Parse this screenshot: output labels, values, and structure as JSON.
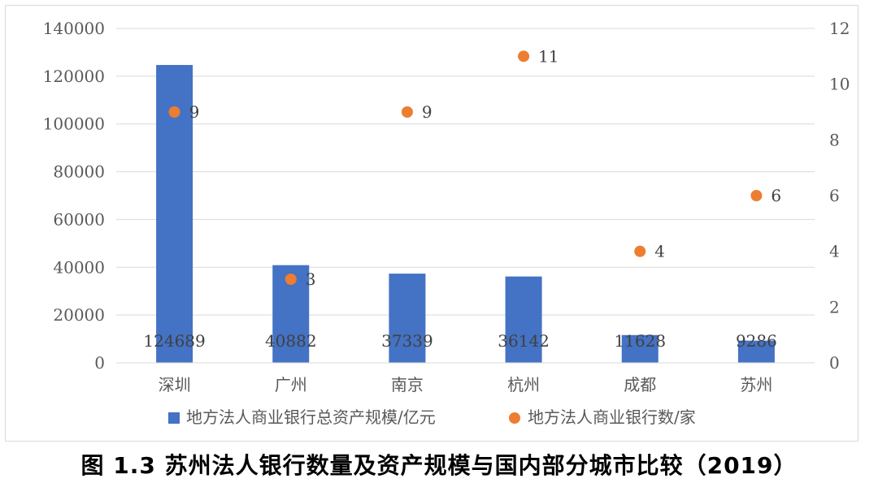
{
  "chart_data": {
    "type": "bar",
    "categories": [
      "深圳",
      "广州",
      "南京",
      "杭州",
      "成都",
      "苏州"
    ],
    "series": [
      {
        "name": "地方法人商业银行总资产规模/亿元",
        "type": "bar",
        "axis": "left",
        "values": [
          124689,
          40882,
          37339,
          36142,
          11628,
          9286
        ],
        "color": "#4472c4"
      },
      {
        "name": "地方法人商业银行数/家",
        "type": "scatter",
        "axis": "right",
        "values": [
          9,
          3,
          9,
          11,
          4,
          6
        ],
        "color": "#ed7d31"
      }
    ],
    "ylim_left": [
      0,
      140000
    ],
    "yticks_left": [
      0,
      20000,
      40000,
      60000,
      80000,
      100000,
      120000,
      140000
    ],
    "ylim_right": [
      0,
      12
    ],
    "yticks_right": [
      0,
      2,
      4,
      6,
      8,
      10,
      12
    ],
    "grid": "horizontal",
    "legend_position": "bottom"
  },
  "caption": "图 1.3  苏州法人银行数量及资产规模与国内部分城市比较（2019）"
}
